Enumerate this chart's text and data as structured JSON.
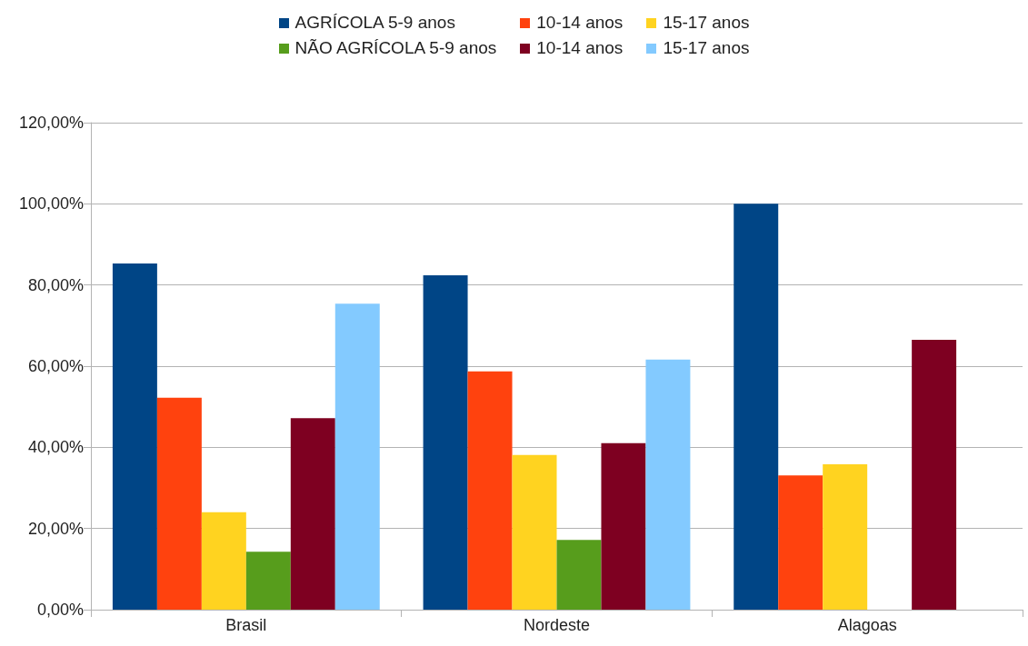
{
  "chart_data": {
    "type": "bar",
    "categories": [
      "Brasil",
      "Nordeste",
      "Alagoas"
    ],
    "series": [
      {
        "name": "AGRÍCOLA 5-9 anos",
        "color": "#004586",
        "values": [
          85.3,
          82.4,
          100
        ]
      },
      {
        "name": "10-14 anos",
        "color": "#ff420e",
        "values": [
          52.2,
          58.7,
          33.1
        ]
      },
      {
        "name": "15-17 anos",
        "color": "#ffd320",
        "values": [
          24.0,
          38.1,
          35.8
        ]
      },
      {
        "name": "NÃO AGRÍCOLA 5-9 anos",
        "color": "#579d1c",
        "values": [
          14.3,
          17.2,
          0
        ]
      },
      {
        "name": "10-14 anos",
        "color": "#7e0021",
        "values": [
          47.2,
          41.0,
          66.5
        ]
      },
      {
        "name": "15-17 anos",
        "color": "#83caff",
        "values": [
          75.4,
          61.6,
          0
        ]
      }
    ],
    "ylim": [
      0,
      120
    ],
    "yticks": [
      {
        "value": 0,
        "label": "0,00%"
      },
      {
        "value": 20,
        "label": "20,00%"
      },
      {
        "value": 40,
        "label": "40,00%"
      },
      {
        "value": 60,
        "label": "60,00%"
      },
      {
        "value": 80,
        "label": "80,00%"
      },
      {
        "value": 100,
        "label": "100,00%"
      },
      {
        "value": 120,
        "label": "120,00%"
      }
    ],
    "grid": "y",
    "legend": "top"
  }
}
